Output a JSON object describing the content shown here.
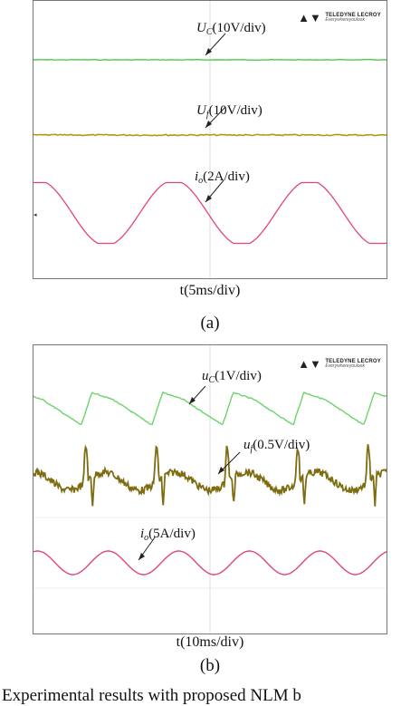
{
  "brand": {
    "name": "TELEDYNE LECROY",
    "tagline": "Everywhereyoulook",
    "mark_icon": "lecroy-logo-icon"
  },
  "chart_data": [
    {
      "type": "line",
      "panel_label": "(a)",
      "xlabel": "t(5ms/div)",
      "x_divisions": 10,
      "grid": false,
      "series": [
        {
          "name": "U_C",
          "symbol": "U",
          "subscript": "C",
          "scale": "(10V/div)",
          "color": "#4fc94f",
          "shape": "flat",
          "level": 0
        },
        {
          "name": "U_f",
          "symbol": "U",
          "subscript": "f",
          "scale": "(10V/div)",
          "color": "#b09a14",
          "shape": "flat",
          "level": 0
        },
        {
          "name": "i_o",
          "symbol": "i",
          "subscript": "o",
          "scale": "(2A/div)",
          "color": "#e0457e",
          "shape": "sine",
          "periods_per_screen": 2.6,
          "amplitude_div": 1,
          "clipped": true
        }
      ]
    },
    {
      "type": "line",
      "panel_label": "(b)",
      "xlabel": "t(10ms/div)",
      "x_divisions": 10,
      "grid": false,
      "series": [
        {
          "name": "u_C",
          "symbol": "u",
          "subscript": "C",
          "scale": "(1V/div)",
          "color": "#6cd36c",
          "shape": "sawtooth",
          "periods_per_screen": 5
        },
        {
          "name": "u_f",
          "symbol": "u",
          "subscript": "f",
          "scale": "(0.5V/div)",
          "color": "#7d6d10",
          "shape": "noisy-spikes",
          "periods_per_screen": 5
        },
        {
          "name": "i_o",
          "symbol": "i",
          "subscript": "o",
          "scale": "(5A/div)",
          "color": "#e0457e",
          "shape": "sine",
          "periods_per_screen": 5,
          "amplitude_div": 0.6
        }
      ]
    }
  ],
  "caption": {
    "text": "Experimental results with proposed NLM b"
  }
}
